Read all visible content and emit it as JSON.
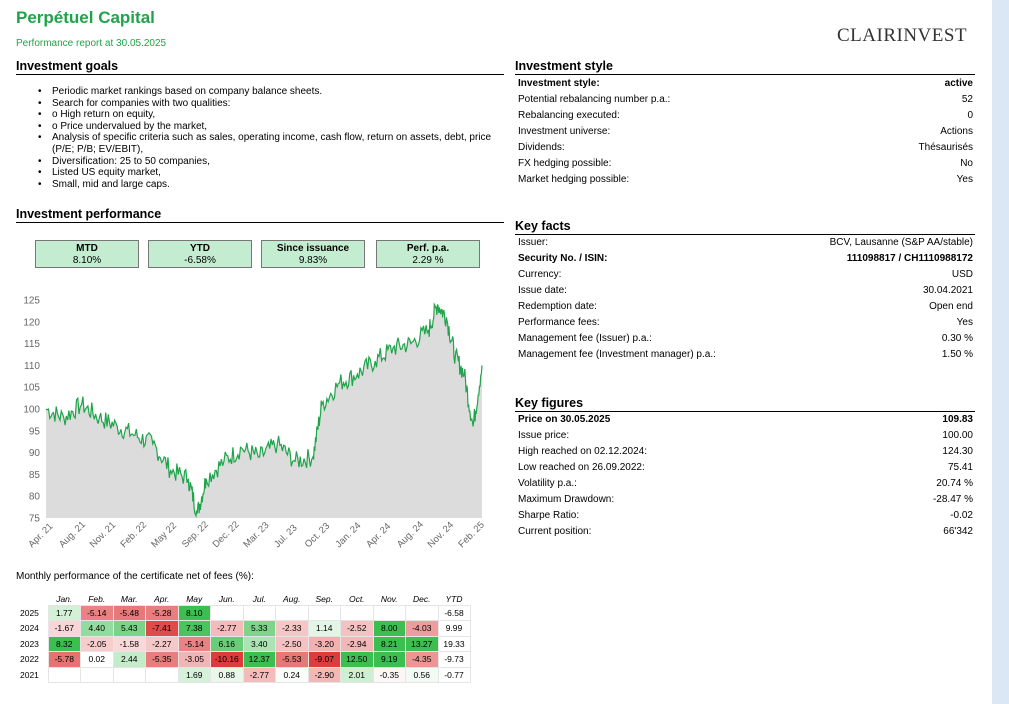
{
  "header": {
    "title": "Perpétuel Capital",
    "subtitle": "Performance report at 30.05.2025",
    "logo_main": "CLAIRINVEST"
  },
  "goals": {
    "heading": "Investment goals",
    "items": [
      "Periodic market rankings based on company balance sheets.",
      "Search for companies with two qualities:",
      "o High return on equity,",
      "o Price undervalued by the market,",
      "Analysis of specific criteria such as sales, operating income, cash flow, return on assets, debt, price (P/E; P/B; EV/EBIT),",
      "Diversification: 25 to 50 companies,",
      "Listed US equity market,",
      "Small, mid and large caps."
    ]
  },
  "style": {
    "heading": "Investment style",
    "rows": [
      {
        "k": "Investment style:",
        "v": "active",
        "bold": true
      },
      {
        "k": "Potential rebalancing number p.a.:",
        "v": "52"
      },
      {
        "k": "Rebalancing executed:",
        "v": "0"
      },
      {
        "k": "Investment universe:",
        "v": "Actions"
      },
      {
        "k": "Dividends:",
        "v": "Thésaurisés"
      },
      {
        "k": "FX hedging possible:",
        "v": "No"
      },
      {
        "k": "Market hedging possible:",
        "v": "Yes"
      }
    ]
  },
  "facts": {
    "heading": "Key facts",
    "rows": [
      {
        "k": "Issuer:",
        "v": "BCV, Lausanne (S&P AA/stable)"
      },
      {
        "k": "Security No. / ISIN:",
        "v": "111098817 / CH1110988172",
        "bold": true
      },
      {
        "k": "Currency:",
        "v": "USD"
      },
      {
        "k": "Issue date:",
        "v": "30.04.2021"
      },
      {
        "k": "Redemption date:",
        "v": "Open end"
      },
      {
        "k": "Performance fees:",
        "v": "Yes"
      },
      {
        "k": "Management fee (Issuer) p.a.:",
        "v": "0.30 %"
      },
      {
        "k": "Management fee (Investment manager) p.a.:",
        "v": "1.50 %"
      }
    ]
  },
  "figures": {
    "heading": "Key figures",
    "rows": [
      {
        "k": "Price on 30.05.2025",
        "v": "109.83",
        "bold": true
      },
      {
        "k": "Issue price:",
        "v": "100.00"
      },
      {
        "k": "High reached on 02.12.2024:",
        "v": "124.30"
      },
      {
        "k": "Low reached on 26.09.2022:",
        "v": "75.41"
      },
      {
        "k": "Volatility p.a.:",
        "v": "20.74 %"
      },
      {
        "k": "Maximum Drawdown:",
        "v": "-28.47 %"
      },
      {
        "k": "Sharpe Ratio:",
        "v": "-0.02"
      },
      {
        "k": "Current position:",
        "v": "66'342"
      }
    ]
  },
  "performance": {
    "heading": "Investment performance",
    "boxes": [
      {
        "label": "MTD",
        "value": "8.10%"
      },
      {
        "label": "YTD",
        "value": "-6.58%"
      },
      {
        "label": "Since issuance",
        "value": "9.83%"
      },
      {
        "label": "Perf. p.a.",
        "value": "2.29 %"
      }
    ]
  },
  "chart_data": {
    "type": "area",
    "ylim": [
      75,
      125
    ],
    "yticks": [
      75,
      80,
      85,
      90,
      95,
      100,
      105,
      110,
      115,
      120,
      125
    ],
    "xticks": [
      "Apr. 21",
      "Aug. 21",
      "Nov. 21",
      "Feb. 22",
      "May 22",
      "Sep. 22",
      "Dec. 22",
      "Mar. 23",
      "Jul. 23",
      "Oct. 23",
      "Jan. 24",
      "Apr. 24",
      "Aug. 24",
      "Nov. 24",
      "Feb. 25"
    ],
    "x": [
      "2021-04",
      "2021-06",
      "2021-08",
      "2021-10",
      "2021-12",
      "2022-02",
      "2022-04",
      "2022-06",
      "2022-08",
      "2022-09",
      "2022-10",
      "2022-12",
      "2023-02",
      "2023-04",
      "2023-06",
      "2023-08",
      "2023-10",
      "2023-11",
      "2024-01",
      "2024-03",
      "2024-05",
      "2024-07",
      "2024-09",
      "2024-11",
      "2024-12",
      "2025-01",
      "2025-02",
      "2025-03",
      "2025-04",
      "2025-05"
    ],
    "y": [
      100,
      98,
      101,
      98,
      96,
      94,
      92,
      86,
      84,
      76,
      84,
      88,
      91,
      89,
      92,
      88,
      89,
      101,
      106,
      108,
      111,
      114,
      115,
      118,
      124,
      121,
      112,
      108,
      96,
      110
    ],
    "series_color": "#1fa44a",
    "fill_color": "#dcdcdc"
  },
  "monthly": {
    "label": "Monthly performance of the certificate net of fees (%):",
    "headers": [
      "Jan.",
      "Feb.",
      "Mar.",
      "Apr.",
      "May",
      "Jun.",
      "Jul.",
      "Aug.",
      "Sep.",
      "Oct.",
      "Nov.",
      "Dec.",
      "YTD"
    ],
    "rows": [
      {
        "year": "2025",
        "vals": [
          "1.77",
          "-5.14",
          "-5.48",
          "-5.28",
          "8.10",
          "",
          "",
          "",
          "",
          "",
          "",
          ""
        ],
        "ytd": "-6.58"
      },
      {
        "year": "2024",
        "vals": [
          "-1.67",
          "4.40",
          "5.43",
          "-7.41",
          "7.38",
          "-2.77",
          "5.33",
          "-2.33",
          "1.14",
          "-2.52",
          "8.00",
          "-4.03"
        ],
        "ytd": "9.99"
      },
      {
        "year": "2023",
        "vals": [
          "8.32",
          "-2.05",
          "-1.58",
          "-2.27",
          "-5.14",
          "6.16",
          "3.40",
          "-2.50",
          "-3.20",
          "-2.94",
          "8.21",
          "13.27"
        ],
        "ytd": "19.33"
      },
      {
        "year": "2022",
        "vals": [
          "-5.78",
          "0.02",
          "2.44",
          "-5.35",
          "-3.05",
          "-10.16",
          "12.37",
          "-5.53",
          "-9.07",
          "12.50",
          "9.19",
          "-4.35"
        ],
        "ytd": "-9.73"
      },
      {
        "year": "2021",
        "vals": [
          "",
          "",
          "",
          "",
          "1.69",
          "0.88",
          "-2.77",
          "0.24",
          "-2.90",
          "2.01",
          "-0.35",
          "0.56"
        ],
        "ytd": "-0.77"
      }
    ]
  }
}
